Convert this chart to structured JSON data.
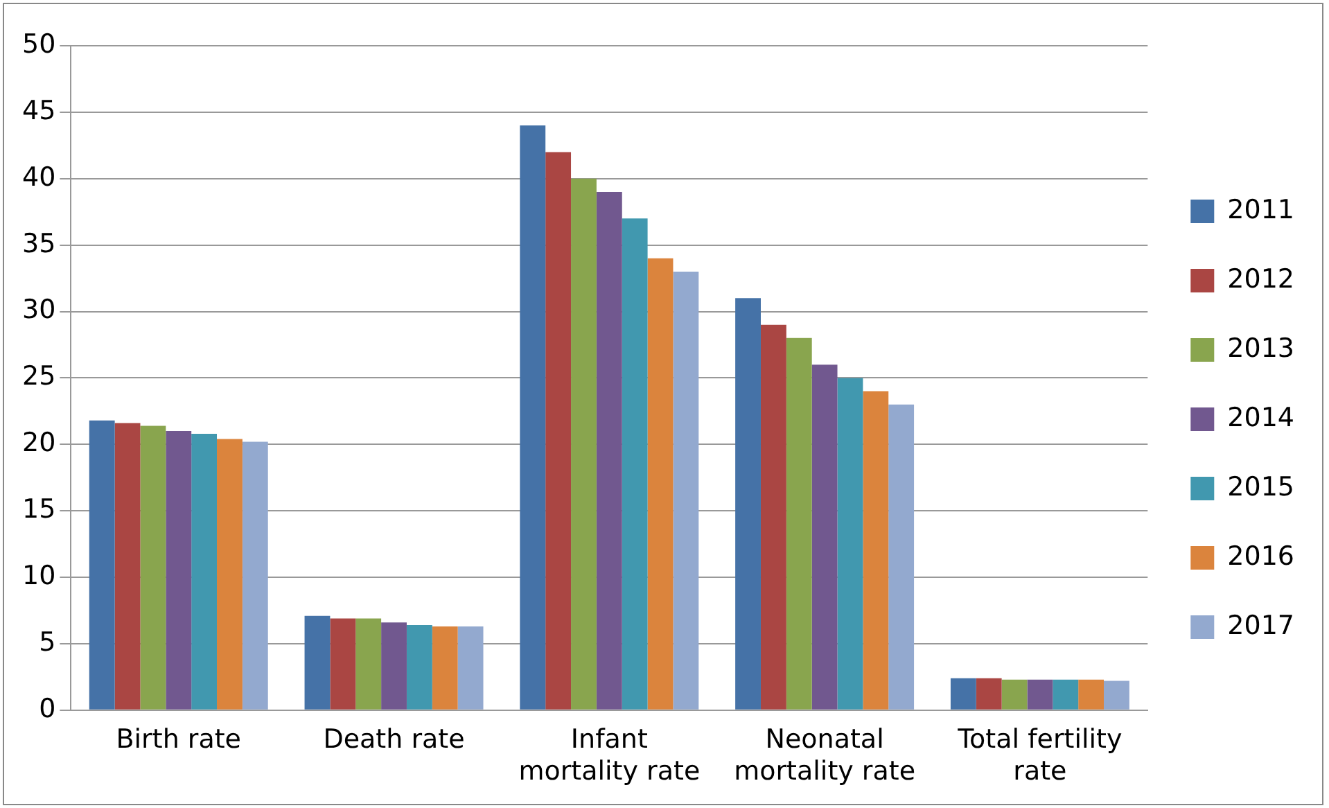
{
  "chart_data": {
    "type": "bar",
    "categories": [
      "Birth rate",
      "Death rate",
      "Infant mortality rate",
      "Neonatal mortality rate",
      "Total fertility rate"
    ],
    "series": [
      {
        "name": "2011",
        "color": "#4572a7",
        "values": [
          21.8,
          7.1,
          44,
          31,
          2.4
        ]
      },
      {
        "name": "2012",
        "color": "#aa4643",
        "values": [
          21.6,
          6.9,
          42,
          29,
          2.4
        ]
      },
      {
        "name": "2013",
        "color": "#89a54e",
        "values": [
          21.4,
          6.9,
          40,
          28,
          2.3
        ]
      },
      {
        "name": "2014",
        "color": "#71588f",
        "values": [
          21.0,
          6.6,
          39,
          26,
          2.3
        ]
      },
      {
        "name": "2015",
        "color": "#4198af",
        "values": [
          20.8,
          6.4,
          37,
          25,
          2.3
        ]
      },
      {
        "name": "2016",
        "color": "#db843d",
        "values": [
          20.4,
          6.3,
          34,
          24,
          2.3
        ]
      },
      {
        "name": "2017",
        "color": "#93a9cf",
        "values": [
          20.2,
          6.3,
          33,
          23,
          2.2
        ]
      }
    ],
    "ylim": [
      0,
      50
    ],
    "yticks": [
      0,
      5,
      10,
      15,
      20,
      25,
      30,
      35,
      40,
      45,
      50
    ],
    "grid": "y",
    "legend": "right"
  }
}
